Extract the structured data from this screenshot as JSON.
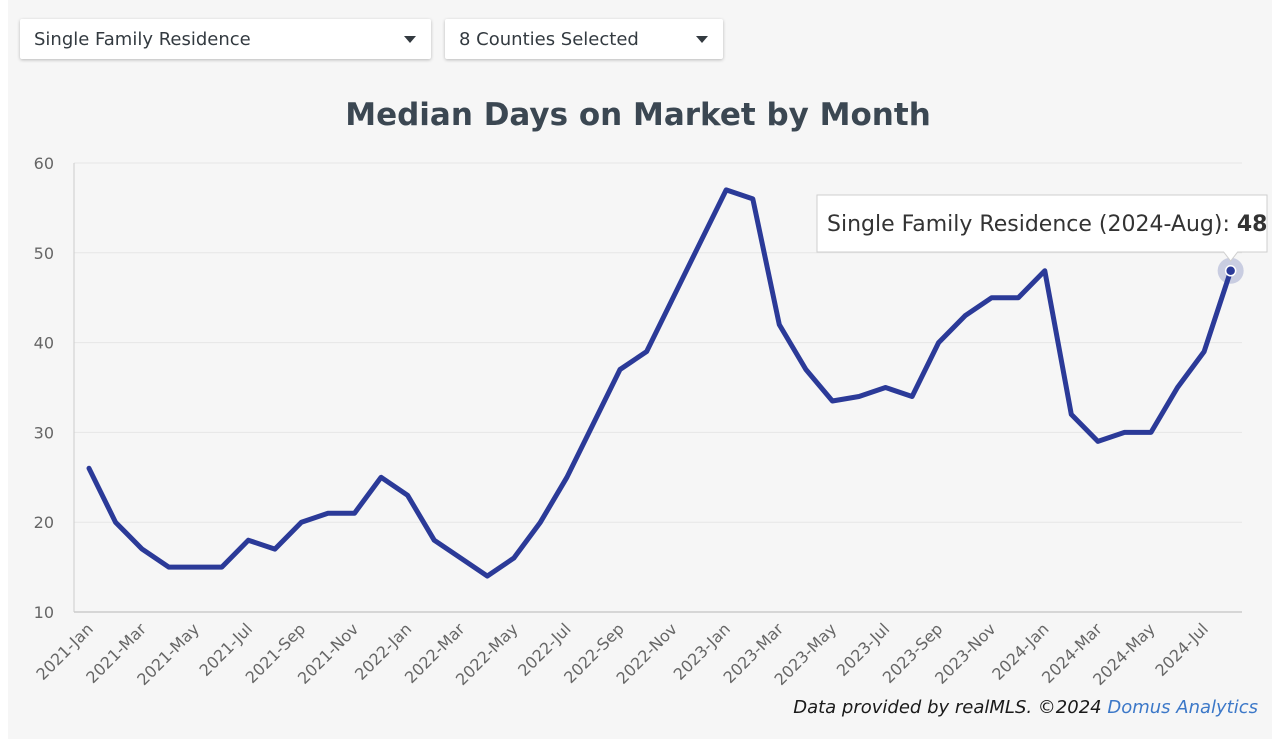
{
  "filters": {
    "property_type": "Single Family Residence",
    "counties": "8 Counties Selected"
  },
  "tooltip": {
    "label": "Single Family Residence (2024-Aug): ",
    "value": "48"
  },
  "credit": {
    "text": "Data provided by realMLS.  ©2024 ",
    "brand": "Domus Analytics"
  },
  "colors": {
    "line": "#2b3a98",
    "grid": "#e6e6e6",
    "axis": "#cccccc"
  },
  "chart_data": {
    "type": "line",
    "title": "Median Days on Market by Month",
    "xlabel": "",
    "ylabel": "",
    "ylim": [
      10,
      60
    ],
    "yticks": [
      10,
      20,
      30,
      40,
      50,
      60
    ],
    "grid": true,
    "legend": "none",
    "x": [
      "2021-Jan",
      "2021-Feb",
      "2021-Mar",
      "2021-Apr",
      "2021-May",
      "2021-Jun",
      "2021-Jul",
      "2021-Aug",
      "2021-Sep",
      "2021-Oct",
      "2021-Nov",
      "2021-Dec",
      "2022-Jan",
      "2022-Feb",
      "2022-Mar",
      "2022-Apr",
      "2022-May",
      "2022-Jun",
      "2022-Jul",
      "2022-Aug",
      "2022-Sep",
      "2022-Oct",
      "2022-Nov",
      "2022-Dec",
      "2023-Jan",
      "2023-Feb",
      "2023-Mar",
      "2023-Apr",
      "2023-May",
      "2023-Jun",
      "2023-Jul",
      "2023-Aug",
      "2023-Sep",
      "2023-Oct",
      "2023-Nov",
      "2023-Dec",
      "2024-Jan",
      "2024-Feb",
      "2024-Mar",
      "2024-Apr",
      "2024-May",
      "2024-Jun",
      "2024-Jul",
      "2024-Aug"
    ],
    "xtick_labels": [
      "2021-Jan",
      "2021-Mar",
      "2021-May",
      "2021-Jul",
      "2021-Sep",
      "2021-Nov",
      "2022-Jan",
      "2022-Mar",
      "2022-May",
      "2022-Jul",
      "2022-Sep",
      "2022-Nov",
      "2023-Jan",
      "2023-Mar",
      "2023-May",
      "2023-Jul",
      "2023-Sep",
      "2023-Nov",
      "2024-Jan",
      "2024-Mar",
      "2024-May",
      "2024-Jul"
    ],
    "series": [
      {
        "name": "Single Family Residence",
        "values": [
          26,
          20,
          17,
          15,
          15,
          15,
          18,
          17,
          20,
          21,
          21,
          25,
          23,
          18,
          16,
          14,
          16,
          20,
          25,
          31,
          37,
          39,
          45,
          51,
          57,
          56,
          42,
          37,
          33.5,
          34,
          35,
          34,
          40,
          43,
          45,
          45,
          48,
          32,
          29,
          30,
          30,
          35,
          39,
          48
        ]
      }
    ]
  }
}
